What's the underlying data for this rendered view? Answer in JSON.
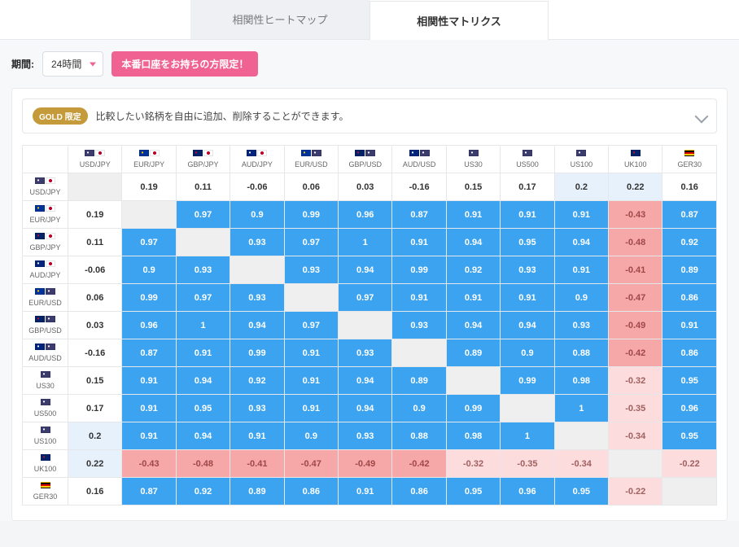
{
  "tabs": {
    "heatmap": "相関性ヒートマップ",
    "matrix": "相関性マトリクス",
    "active": "matrix"
  },
  "controls": {
    "period_label": "期間:",
    "period_value": "24時間",
    "promo_button": "本番口座をお持ちの方限定！"
  },
  "banner": {
    "badge": "GOLD 限定",
    "message": "比較したい銘柄を自由に追加、削除することができます。"
  },
  "flag_colors": {
    "US": "#3c3b6e",
    "JP": "#ffffff",
    "EU": "#003399",
    "GB": "#012169",
    "AU": "#00247d",
    "DE": "#000000"
  },
  "flag_dot": {
    "JP": "#bc002d",
    "US": "#ffffff",
    "EU": "#ffcc00",
    "GB": "#c8102e",
    "AU": "#ffffff",
    "DE": "#dd0000"
  },
  "symbols": [
    {
      "id": "USDJPY",
      "label": "USD/JPY",
      "flags": [
        "US",
        "JP"
      ]
    },
    {
      "id": "EURJPY",
      "label": "EUR/JPY",
      "flags": [
        "EU",
        "JP"
      ]
    },
    {
      "id": "GBPJPY",
      "label": "GBP/JPY",
      "flags": [
        "GB",
        "JP"
      ]
    },
    {
      "id": "AUDJPY",
      "label": "AUD/JPY",
      "flags": [
        "AU",
        "JP"
      ]
    },
    {
      "id": "EURUSD",
      "label": "EUR/USD",
      "flags": [
        "EU",
        "US"
      ]
    },
    {
      "id": "GBPUSD",
      "label": "GBP/USD",
      "flags": [
        "GB",
        "US"
      ]
    },
    {
      "id": "AUDUSD",
      "label": "AUD/USD",
      "flags": [
        "AU",
        "US"
      ]
    },
    {
      "id": "US30",
      "label": "US30",
      "flags": [
        "US"
      ]
    },
    {
      "id": "US500",
      "label": "US500",
      "flags": [
        "US"
      ]
    },
    {
      "id": "US100",
      "label": "US100",
      "flags": [
        "US"
      ]
    },
    {
      "id": "UK100",
      "label": "UK100",
      "flags": [
        "GB"
      ]
    },
    {
      "id": "GER30",
      "label": "GER30",
      "flags": [
        "DE"
      ]
    }
  ],
  "matrix": [
    [
      null,
      0.19,
      0.11,
      -0.06,
      0.06,
      0.03,
      -0.16,
      0.15,
      0.17,
      0.2,
      0.22,
      0.16
    ],
    [
      0.19,
      null,
      0.97,
      0.9,
      0.99,
      0.96,
      0.87,
      0.91,
      0.91,
      0.91,
      -0.43,
      0.87
    ],
    [
      0.11,
      0.97,
      null,
      0.93,
      0.97,
      1,
      0.91,
      0.94,
      0.95,
      0.94,
      -0.48,
      0.92
    ],
    [
      -0.06,
      0.9,
      0.93,
      null,
      0.93,
      0.94,
      0.99,
      0.92,
      0.93,
      0.91,
      -0.41,
      0.89
    ],
    [
      0.06,
      0.99,
      0.97,
      0.93,
      null,
      0.97,
      0.91,
      0.91,
      0.91,
      0.9,
      -0.47,
      0.86
    ],
    [
      0.03,
      0.96,
      1,
      0.94,
      0.97,
      null,
      0.93,
      0.94,
      0.94,
      0.93,
      -0.49,
      0.91
    ],
    [
      -0.16,
      0.87,
      0.91,
      0.99,
      0.91,
      0.93,
      null,
      0.89,
      0.9,
      0.88,
      -0.42,
      0.86
    ],
    [
      0.15,
      0.91,
      0.94,
      0.92,
      0.91,
      0.94,
      0.89,
      null,
      0.99,
      0.98,
      -0.32,
      0.95
    ],
    [
      0.17,
      0.91,
      0.95,
      0.93,
      0.91,
      0.94,
      0.9,
      0.99,
      null,
      1,
      -0.35,
      0.96
    ],
    [
      0.2,
      0.91,
      0.94,
      0.91,
      0.9,
      0.93,
      0.88,
      0.98,
      1,
      null,
      -0.34,
      0.95
    ],
    [
      0.22,
      -0.43,
      -0.48,
      -0.41,
      -0.47,
      -0.49,
      -0.42,
      -0.32,
      -0.35,
      -0.34,
      null,
      -0.22
    ],
    [
      0.16,
      0.87,
      0.92,
      0.89,
      0.86,
      0.91,
      0.86,
      0.95,
      0.96,
      0.95,
      -0.22,
      null
    ]
  ],
  "style": {
    "row0_bg": "#ffffff",
    "row0_text": "#333333",
    "row0_font_weight": 700,
    "neg_strong_bg": "#f6a7a7",
    "neg_strong_text": "#8a3b3b",
    "neg_mild_bg": "#fcdcdc",
    "neg_mild_text": "#9a5a5a",
    "pos_strong_bg": "#3ba3f0",
    "pos_strong_text": "#ffffff",
    "pos_pale_bg": "#e7f1fb",
    "pos_pale_text": "#4a6a8a",
    "diag_bg": "#efefef",
    "thresholds": {
      "neg_strong": -0.4,
      "neg_mild": 0,
      "pos_pale": 0.25
    }
  }
}
